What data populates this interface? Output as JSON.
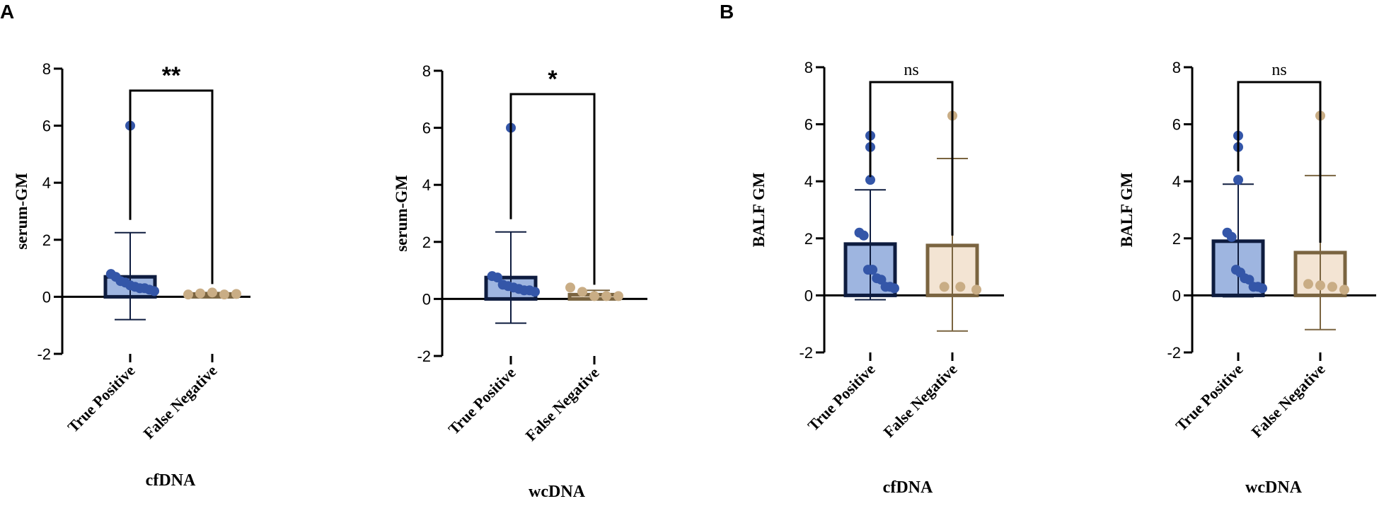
{
  "panel_letters": [
    "A",
    "B"
  ],
  "chart_data": [
    {
      "type": "bar",
      "panel": "A",
      "title": "",
      "xlabel": "cfDNA",
      "ylabel": "serum-GM",
      "ylim": [
        -2,
        8
      ],
      "yticks": [
        "-2",
        "0",
        "2",
        "4",
        "6",
        "8"
      ],
      "categories": [
        "True Positive",
        "False Negative"
      ],
      "series": [
        {
          "name": "True Positive",
          "mean": 0.7,
          "sd_upper": 2.25,
          "sd_lower": -0.8,
          "points": [
            6.0,
            0.8,
            0.7,
            0.55,
            0.5,
            0.4,
            0.35,
            0.3,
            0.3,
            0.25,
            0.2
          ],
          "color": "#3456a8",
          "fill": "#9eb5e0",
          "edge": "#0e1c3f"
        },
        {
          "name": "False Negative",
          "mean": 0.1,
          "sd_upper": 0.15,
          "sd_lower": 0.05,
          "points": [
            0.08,
            0.12,
            0.15,
            0.08,
            0.1
          ],
          "color": "#c9ad85",
          "fill": "#f3e4d3",
          "edge": "#7a6440"
        }
      ],
      "significance": "**"
    },
    {
      "type": "bar",
      "panel": "A",
      "title": "",
      "xlabel": "wcDNA",
      "ylabel": "serum-GM",
      "ylim": [
        -2,
        8
      ],
      "yticks": [
        "-2",
        "0",
        "2",
        "4",
        "6",
        "8"
      ],
      "categories": [
        "True Positive",
        "False Negative"
      ],
      "series": [
        {
          "name": "True Positive",
          "mean": 0.75,
          "sd_upper": 2.35,
          "sd_lower": -0.85,
          "points": [
            6.0,
            0.8,
            0.75,
            0.5,
            0.45,
            0.4,
            0.35,
            0.3,
            0.3,
            0.25
          ],
          "color": "#3456a8",
          "fill": "#9eb5e0",
          "edge": "#0e1c3f"
        },
        {
          "name": "False Negative",
          "mean": 0.15,
          "sd_upper": 0.3,
          "sd_lower": 0.0,
          "points": [
            0.4,
            0.25,
            0.1,
            0.1,
            0.1
          ],
          "color": "#c9ad85",
          "fill": "#f3e4d3",
          "edge": "#7a6440"
        }
      ],
      "significance": "*"
    },
    {
      "type": "bar",
      "panel": "B",
      "title": "",
      "xlabel": "cfDNA",
      "ylabel": "BALF GM",
      "ylim": [
        -2,
        8
      ],
      "yticks": [
        "-2",
        "0",
        "2",
        "4",
        "6",
        "8"
      ],
      "categories": [
        "True Positive",
        "False Negative"
      ],
      "series": [
        {
          "name": "True Positive",
          "mean": 1.8,
          "sd_upper": 3.7,
          "sd_lower": -0.15,
          "points": [
            5.6,
            5.2,
            4.05,
            2.2,
            2.1,
            0.9,
            0.9,
            0.6,
            0.55,
            0.3,
            0.3,
            0.25
          ],
          "color": "#3456a8",
          "fill": "#9eb5e0",
          "edge": "#0e1c3f"
        },
        {
          "name": "False Negative",
          "mean": 1.75,
          "sd_upper": 4.8,
          "sd_lower": -1.25,
          "points": [
            6.3,
            0.3,
            0.3,
            0.2
          ],
          "color": "#c9ad85",
          "fill": "#f3e4d3",
          "edge": "#7a6440"
        }
      ],
      "significance": "ns"
    },
    {
      "type": "bar",
      "panel": "B",
      "title": "",
      "xlabel": "wcDNA",
      "ylabel": "BALF GM",
      "ylim": [
        -2,
        8
      ],
      "yticks": [
        "-2",
        "0",
        "2",
        "4",
        "6",
        "8"
      ],
      "categories": [
        "True Positive",
        "False Negative"
      ],
      "series": [
        {
          "name": "True Positive",
          "mean": 1.9,
          "sd_upper": 3.9,
          "sd_lower": -0.05,
          "points": [
            5.6,
            5.2,
            4.05,
            2.2,
            2.05,
            0.9,
            0.8,
            0.6,
            0.55,
            0.3,
            0.3,
            0.25
          ],
          "color": "#3456a8",
          "fill": "#9eb5e0",
          "edge": "#0e1c3f"
        },
        {
          "name": "False Negative",
          "mean": 1.5,
          "sd_upper": 4.2,
          "sd_lower": -1.2,
          "points": [
            6.3,
            0.4,
            0.35,
            0.3,
            0.2
          ],
          "color": "#c9ad85",
          "fill": "#f3e4d3",
          "edge": "#7a6440"
        }
      ],
      "significance": "ns"
    }
  ]
}
